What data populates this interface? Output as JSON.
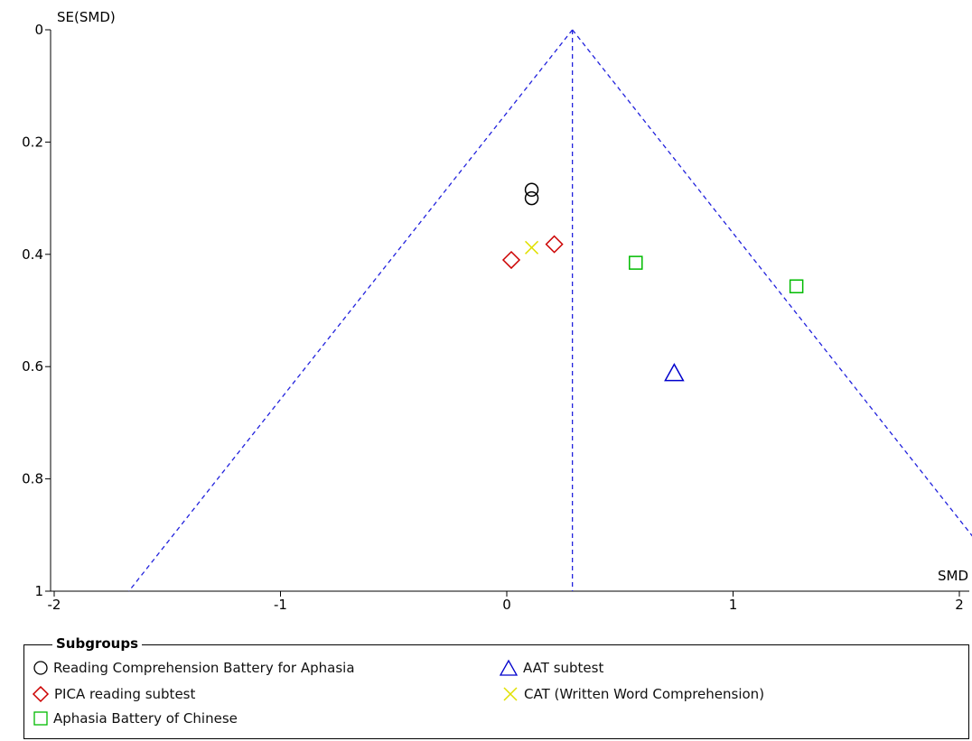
{
  "chart_data": {
    "type": "scatter",
    "title": "",
    "xlabel": "SMD",
    "ylabel": "SE(SMD)",
    "xlim": [
      -2,
      2
    ],
    "ylim": [
      0,
      1
    ],
    "y_inverted": true,
    "x_ticks": [
      "-2",
      "-1",
      "0",
      "1",
      "2"
    ],
    "y_ticks": [
      "0",
      "0.2",
      "0.4",
      "0.6",
      "0.8",
      "1"
    ],
    "pooled_estimate": 0.29,
    "funnel_lines": "dashed, pseudo 95% confidence limits",
    "grid": false,
    "legend": {
      "title": "Subgroups",
      "placement": "bottom",
      "entries": [
        {
          "label": "Reading Comprehension Battery for Aphasia",
          "marker": "circle",
          "color": "#000000"
        },
        {
          "label": "AAT subtest",
          "marker": "triangle",
          "color": "#0000cc"
        },
        {
          "label": "PICA reading subtest",
          "marker": "diamond",
          "color": "#cc0000"
        },
        {
          "label": "CAT (Written Word Comprehension)",
          "marker": "x",
          "color": "#e0e000"
        },
        {
          "label": "Aphasia Battery of Chinese",
          "marker": "square",
          "color": "#00bb00"
        }
      ]
    },
    "series": [
      {
        "name": "Reading Comprehension Battery for Aphasia",
        "marker": "circle",
        "color": "#000000",
        "points": [
          {
            "x": 0.11,
            "y": 0.285
          },
          {
            "x": 0.11,
            "y": 0.3
          }
        ]
      },
      {
        "name": "PICA reading subtest",
        "marker": "diamond",
        "color": "#cc0000",
        "points": [
          {
            "x": 0.02,
            "y": 0.41
          },
          {
            "x": 0.21,
            "y": 0.382
          }
        ]
      },
      {
        "name": "CAT (Written Word Comprehension)",
        "marker": "x",
        "color": "#e0e000",
        "points": [
          {
            "x": 0.11,
            "y": 0.388
          }
        ]
      },
      {
        "name": "Aphasia Battery of Chinese",
        "marker": "square",
        "color": "#00bb00",
        "points": [
          {
            "x": 0.57,
            "y": 0.415
          },
          {
            "x": 1.28,
            "y": 0.457
          }
        ]
      },
      {
        "name": "AAT subtest",
        "marker": "triangle",
        "color": "#0000cc",
        "points": [
          {
            "x": 0.74,
            "y": 0.612
          }
        ]
      }
    ]
  }
}
